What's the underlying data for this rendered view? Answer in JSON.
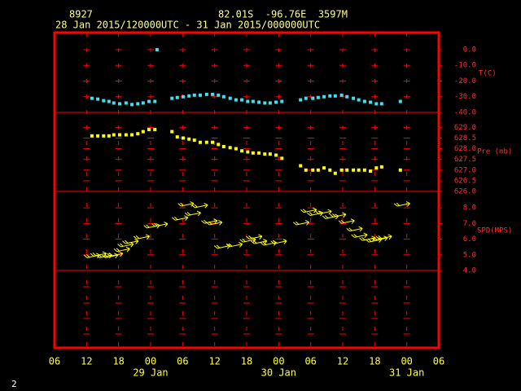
{
  "chart_data": {
    "type": "scatter",
    "title": "8927",
    "subtitle": "82.01S  -96.76E  3597M",
    "time_range": "28 Jan 2015/120000UTC - 31 Jan 2015/000000UTC",
    "footer": "2",
    "xlim": [
      0,
      72
    ],
    "xticks": [
      {
        "value": 0,
        "label": "06"
      },
      {
        "value": 6,
        "label": "12"
      },
      {
        "value": 12,
        "label": "18"
      },
      {
        "value": 18,
        "label": "00"
      },
      {
        "value": 24,
        "label": "06"
      },
      {
        "value": 30,
        "label": "12"
      },
      {
        "value": 36,
        "label": "18"
      },
      {
        "value": 42,
        "label": "00"
      },
      {
        "value": 48,
        "label": "06"
      },
      {
        "value": 54,
        "label": "12"
      },
      {
        "value": 60,
        "label": "18"
      },
      {
        "value": 66,
        "label": "00"
      },
      {
        "value": 72,
        "label": "06"
      }
    ],
    "date_labels": [
      {
        "value": 18,
        "label": "29 Jan"
      },
      {
        "value": 42,
        "label": "30 Jan"
      },
      {
        "value": 66,
        "label": "31 Jan"
      }
    ],
    "frame_color": "#ff0000",
    "panels": [
      {
        "label": "T(C)",
        "color": "#40e0f0",
        "marker": "square",
        "ylim": [
          -40,
          10.9
        ],
        "yticks": [
          {
            "value": 0,
            "label": "0.0"
          },
          {
            "value": -10,
            "label": "-10.0"
          },
          {
            "value": -20,
            "label": "-20.0"
          },
          {
            "value": -30,
            "label": "-30.0"
          },
          {
            "value": -40,
            "label": "-40.0"
          }
        ],
        "x": [
          7.0,
          8.1,
          9.2,
          10.2,
          11.1,
          12.2,
          13.4,
          14.5,
          15.6,
          16.6,
          17.7,
          18.8,
          19.2,
          22.0,
          23.0,
          24.1,
          25.2,
          26.2,
          27.3,
          28.5,
          29.6,
          30.7,
          31.7,
          32.9,
          34.0,
          35.1,
          36.2,
          37.2,
          38.3,
          39.4,
          40.4,
          41.5,
          42.6,
          46.1,
          47.1,
          48.4,
          49.4,
          50.5,
          51.6,
          52.6,
          53.8,
          54.8,
          56.0,
          57.0,
          58.1,
          59.2,
          60.3,
          61.3,
          64.8
        ],
        "values": [
          -31,
          -31.5,
          -32.5,
          -33,
          -34,
          -34.5,
          -34,
          -35,
          -34.5,
          -34,
          -33,
          -33,
          0.0,
          -31,
          -30.5,
          -30,
          -29.5,
          -29,
          -29,
          -28.5,
          -28.5,
          -29,
          -30,
          -31,
          -32,
          -32,
          -33,
          -33,
          -33.5,
          -34,
          -34,
          -33.5,
          -33,
          -32,
          -31,
          -31,
          -30.5,
          -30,
          -29.5,
          -29.5,
          -29,
          -30,
          -31,
          -32,
          -33,
          -33.5,
          -34.5,
          -34.5,
          -33
        ]
      },
      {
        "label": "Pre (mb)",
        "color": "#ffff00",
        "marker": "square",
        "ylim": [
          626,
          629.7
        ],
        "yticks": [
          {
            "value": 629,
            "label": "629.0"
          },
          {
            "value": 628.5,
            "label": "628.5"
          },
          {
            "value": 628,
            "label": "628.0"
          },
          {
            "value": 627.5,
            "label": "627.5"
          },
          {
            "value": 627,
            "label": "627.0"
          },
          {
            "value": 626.5,
            "label": "626.5"
          },
          {
            "value": 626,
            "label": "626.0"
          }
        ],
        "x": [
          7.0,
          8.1,
          9.2,
          10.2,
          11.1,
          12.2,
          13.4,
          14.5,
          15.6,
          16.6,
          17.7,
          18.8,
          19.2,
          22.0,
          23.0,
          24.1,
          25.2,
          26.2,
          27.3,
          28.5,
          29.6,
          30.7,
          31.7,
          32.9,
          34.0,
          35.1,
          36.2,
          37.2,
          38.3,
          39.4,
          40.4,
          41.5,
          42.6,
          46.1,
          47.1,
          48.4,
          49.4,
          50.5,
          51.6,
          52.6,
          53.8,
          54.8,
          56.0,
          57.0,
          58.1,
          59.2,
          60.3,
          61.3,
          64.8
        ],
        "values": [
          628.6,
          628.6,
          628.6,
          628.6,
          628.65,
          628.65,
          628.65,
          628.65,
          628.7,
          628.8,
          628.9,
          628.9,
          null,
          628.8,
          628.55,
          628.5,
          628.45,
          628.4,
          628.3,
          628.3,
          628.3,
          628.2,
          628.1,
          628.05,
          628.0,
          627.9,
          627.85,
          627.8,
          627.8,
          627.75,
          627.75,
          627.7,
          627.55,
          627.2,
          627.0,
          627.0,
          627.0,
          627.1,
          627.0,
          626.85,
          627.0,
          627.0,
          627.0,
          627.0,
          627.0,
          626.95,
          627.1,
          627.15,
          627.0
        ]
      },
      {
        "label": "SPD(MPS)",
        "color": "#ffff00",
        "marker": "barb",
        "ylim": [
          4,
          9.05
        ],
        "yticks": [
          {
            "value": 8,
            "label": "8.0"
          },
          {
            "value": 7,
            "label": "7.0"
          },
          {
            "value": 6,
            "label": "6.0"
          },
          {
            "value": 5,
            "label": "5.0"
          },
          {
            "value": 4,
            "label": "4.0"
          }
        ],
        "x": [
          7.3,
          8.5,
          9.6,
          10.7,
          11.6,
          12.9,
          13.6,
          14.5,
          16.6,
          18.5,
          20.0,
          23.8,
          24.9,
          26.2,
          27.5,
          29.3,
          30.2,
          31.7,
          34.0,
          36.5,
          37.7,
          38.6,
          40.4,
          42.3,
          46.5,
          47.9,
          49.1,
          50.7,
          52.0,
          53.4,
          55.0,
          56.5,
          57.4,
          58.9,
          60.1,
          61.2,
          62.0,
          65.4
        ],
        "values": [
          4.9,
          5.0,
          4.9,
          4.9,
          5.0,
          5.3,
          5.6,
          5.8,
          6.1,
          6.8,
          6.9,
          7.3,
          8.2,
          7.6,
          8.1,
          7.1,
          7.0,
          5.5,
          5.6,
          5.9,
          6.1,
          5.8,
          5.7,
          5.8,
          7.0,
          7.8,
          7.6,
          7.7,
          7.4,
          7.5,
          7.1,
          6.6,
          6.2,
          6.0,
          5.9,
          6.0,
          6.1,
          8.2
        ]
      }
    ]
  }
}
